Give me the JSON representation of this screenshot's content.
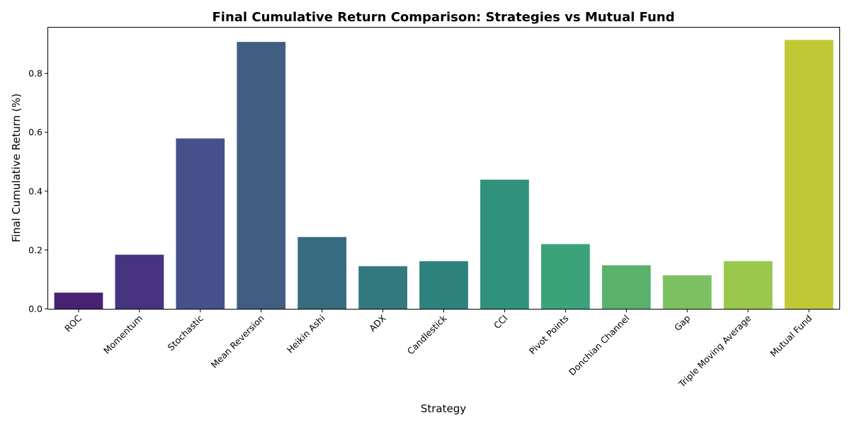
{
  "chart_data": {
    "type": "bar",
    "title": "Final Cumulative Return Comparison: Strategies vs Mutual Fund",
    "xlabel": "Strategy",
    "ylabel": "Final Cumulative Return (%)",
    "categories": [
      "ROC",
      "Momentum",
      "Stochastic",
      "Mean Reversion",
      "Heikin Ashi",
      "ADX",
      "Candlestick",
      "CCI",
      "Pivot Points",
      "Donchian Channel",
      "Gap",
      "Triple Moving Average",
      "Mutual Fund"
    ],
    "values": [
      0.055,
      0.184,
      0.579,
      0.907,
      0.244,
      0.145,
      0.162,
      0.439,
      0.22,
      0.148,
      0.114,
      0.162,
      0.914
    ],
    "colors": [
      "#482173",
      "#463480",
      "#46508a",
      "#415e80",
      "#366b80",
      "#33787f",
      "#2d827d",
      "#30917c",
      "#3ba27a",
      "#5ab16c",
      "#7cc161",
      "#9ac84c",
      "#bfc935"
    ],
    "ylim": [
      0,
      0.958
    ],
    "yticks": [
      0.0,
      0.2,
      0.4,
      0.6,
      0.8
    ],
    "ytick_labels": [
      "0.0",
      "0.2",
      "0.4",
      "0.6",
      "0.8"
    ],
    "grid": false,
    "legend": "none"
  }
}
